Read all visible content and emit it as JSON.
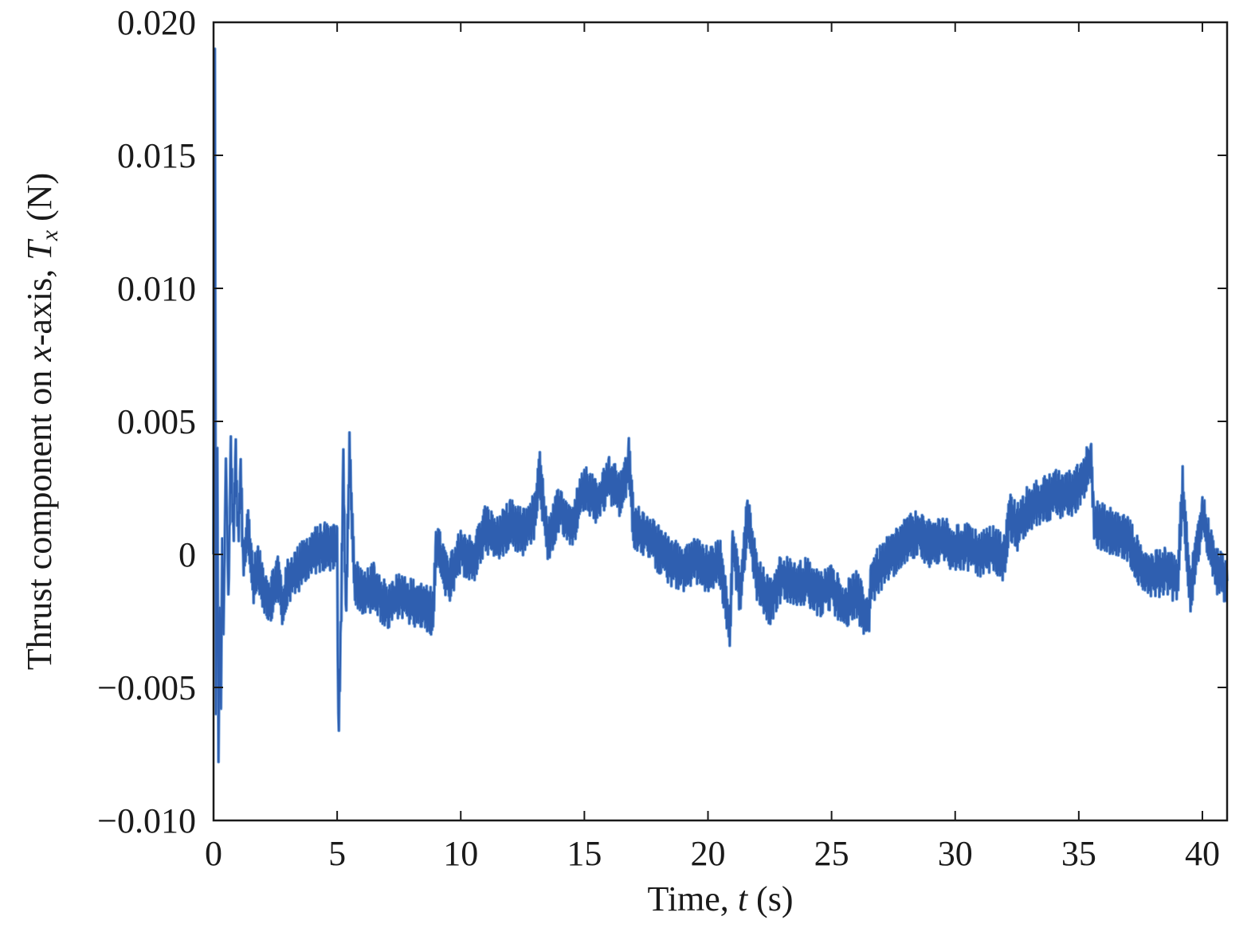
{
  "chart_data": {
    "type": "line",
    "xlabel_parts": [
      "Time, ",
      "t",
      " (s)"
    ],
    "ylabel_parts": [
      "Thrust component on ",
      "x",
      "-axis, ",
      "T",
      "x",
      " (N)"
    ],
    "xlim": [
      0,
      41
    ],
    "ylim": [
      -0.01,
      0.02
    ],
    "xticks": [
      0,
      5,
      10,
      15,
      20,
      25,
      30,
      35,
      40
    ],
    "xtick_labels": [
      "0",
      "5",
      "10",
      "15",
      "20",
      "25",
      "30",
      "35",
      "40"
    ],
    "yticks": [
      -0.01,
      -0.005,
      0,
      0.005,
      0.01,
      0.015,
      0.02
    ],
    "ytick_labels": [
      "−0.010",
      "−0.005",
      "0",
      "0.005",
      "0.010",
      "0.015",
      "0.020"
    ],
    "grid": false,
    "line_color": "#2f5fb0",
    "series": [
      {
        "x": [
          0,
          0.05,
          0.1,
          0.15,
          0.2,
          0.25,
          0.3,
          0.35,
          0.4,
          0.5,
          0.6,
          0.7,
          0.8,
          0.9,
          1.0,
          1.1,
          1.2,
          1.4,
          1.6,
          1.8,
          2.0,
          2.3,
          2.6,
          2.8,
          3.0,
          3.5,
          4.0,
          4.5,
          5.0,
          5.05,
          5.15,
          5.25,
          5.35,
          5.5,
          5.7,
          6.0,
          6.5,
          7.0,
          7.5,
          8.0,
          8.5,
          8.9,
          9.0,
          9.5,
          10.0,
          10.5,
          11.0,
          11.5,
          12.0,
          12.5,
          13.0,
          13.2,
          13.5,
          14.0,
          14.5,
          15.0,
          15.5,
          16.0,
          16.5,
          16.8,
          17.0,
          17.5,
          18.0,
          18.5,
          19.0,
          19.5,
          20.0,
          20.5,
          20.9,
          21.0,
          21.3,
          21.6,
          22.0,
          22.5,
          23.0,
          23.5,
          24.0,
          24.5,
          25.0,
          25.5,
          26.0,
          26.5,
          26.6,
          27.0,
          27.5,
          28.0,
          28.5,
          29.0,
          29.5,
          30.0,
          30.5,
          31.0,
          31.5,
          32.0,
          32.2,
          32.5,
          33.0,
          33.5,
          34.0,
          34.5,
          35.0,
          35.5,
          35.6,
          36.0,
          36.5,
          37.0,
          37.5,
          38.0,
          38.5,
          39.0,
          39.2,
          39.5,
          40.0,
          40.5,
          41.0
        ],
        "y": [
          0,
          0.019,
          -0.006,
          0.004,
          -0.0078,
          -0.002,
          -0.0058,
          0.0006,
          -0.003,
          0.0036,
          -0.0015,
          0.0038,
          0.0008,
          0.0035,
          0.0006,
          0.003,
          -0.0005,
          0.001,
          -0.001,
          -0.0005,
          -0.0012,
          -0.0018,
          -0.0008,
          -0.002,
          -0.001,
          -0.0005,
          0.0001,
          0.0003,
          0.0002,
          -0.0065,
          -0.003,
          0.0035,
          -0.0025,
          0.0038,
          -0.001,
          -0.0015,
          -0.0012,
          -0.002,
          -0.0015,
          -0.0018,
          -0.0019,
          -0.0022,
          0.0004,
          -0.001,
          0.0002,
          -0.0003,
          0.001,
          0.0005,
          0.0012,
          0.0008,
          0.0015,
          0.003,
          0.0005,
          0.0018,
          0.001,
          0.0025,
          0.002,
          0.0028,
          0.0022,
          0.0035,
          0.001,
          0.0008,
          0.0002,
          -0.0003,
          -0.0005,
          -0.0002,
          -0.0006,
          -0.0003,
          -0.003,
          0.0005,
          -0.0015,
          0.0015,
          -0.001,
          -0.0018,
          -0.0008,
          -0.0012,
          -0.001,
          -0.0015,
          -0.0012,
          -0.002,
          -0.0015,
          -0.0025,
          -0.001,
          -0.0005,
          0.0,
          0.0005,
          0.0008,
          0.0004,
          0.0006,
          0.0002,
          0.0003,
          0.0,
          0.0002,
          -0.0002,
          0.0015,
          0.001,
          0.0018,
          0.002,
          0.0023,
          0.0022,
          0.0025,
          0.0036,
          0.0012,
          0.001,
          0.0008,
          0.0006,
          -0.0005,
          -0.0008,
          -0.0006,
          -0.001,
          0.0025,
          -0.0015,
          0.0015,
          -0.0005,
          -0.001
        ]
      }
    ]
  }
}
